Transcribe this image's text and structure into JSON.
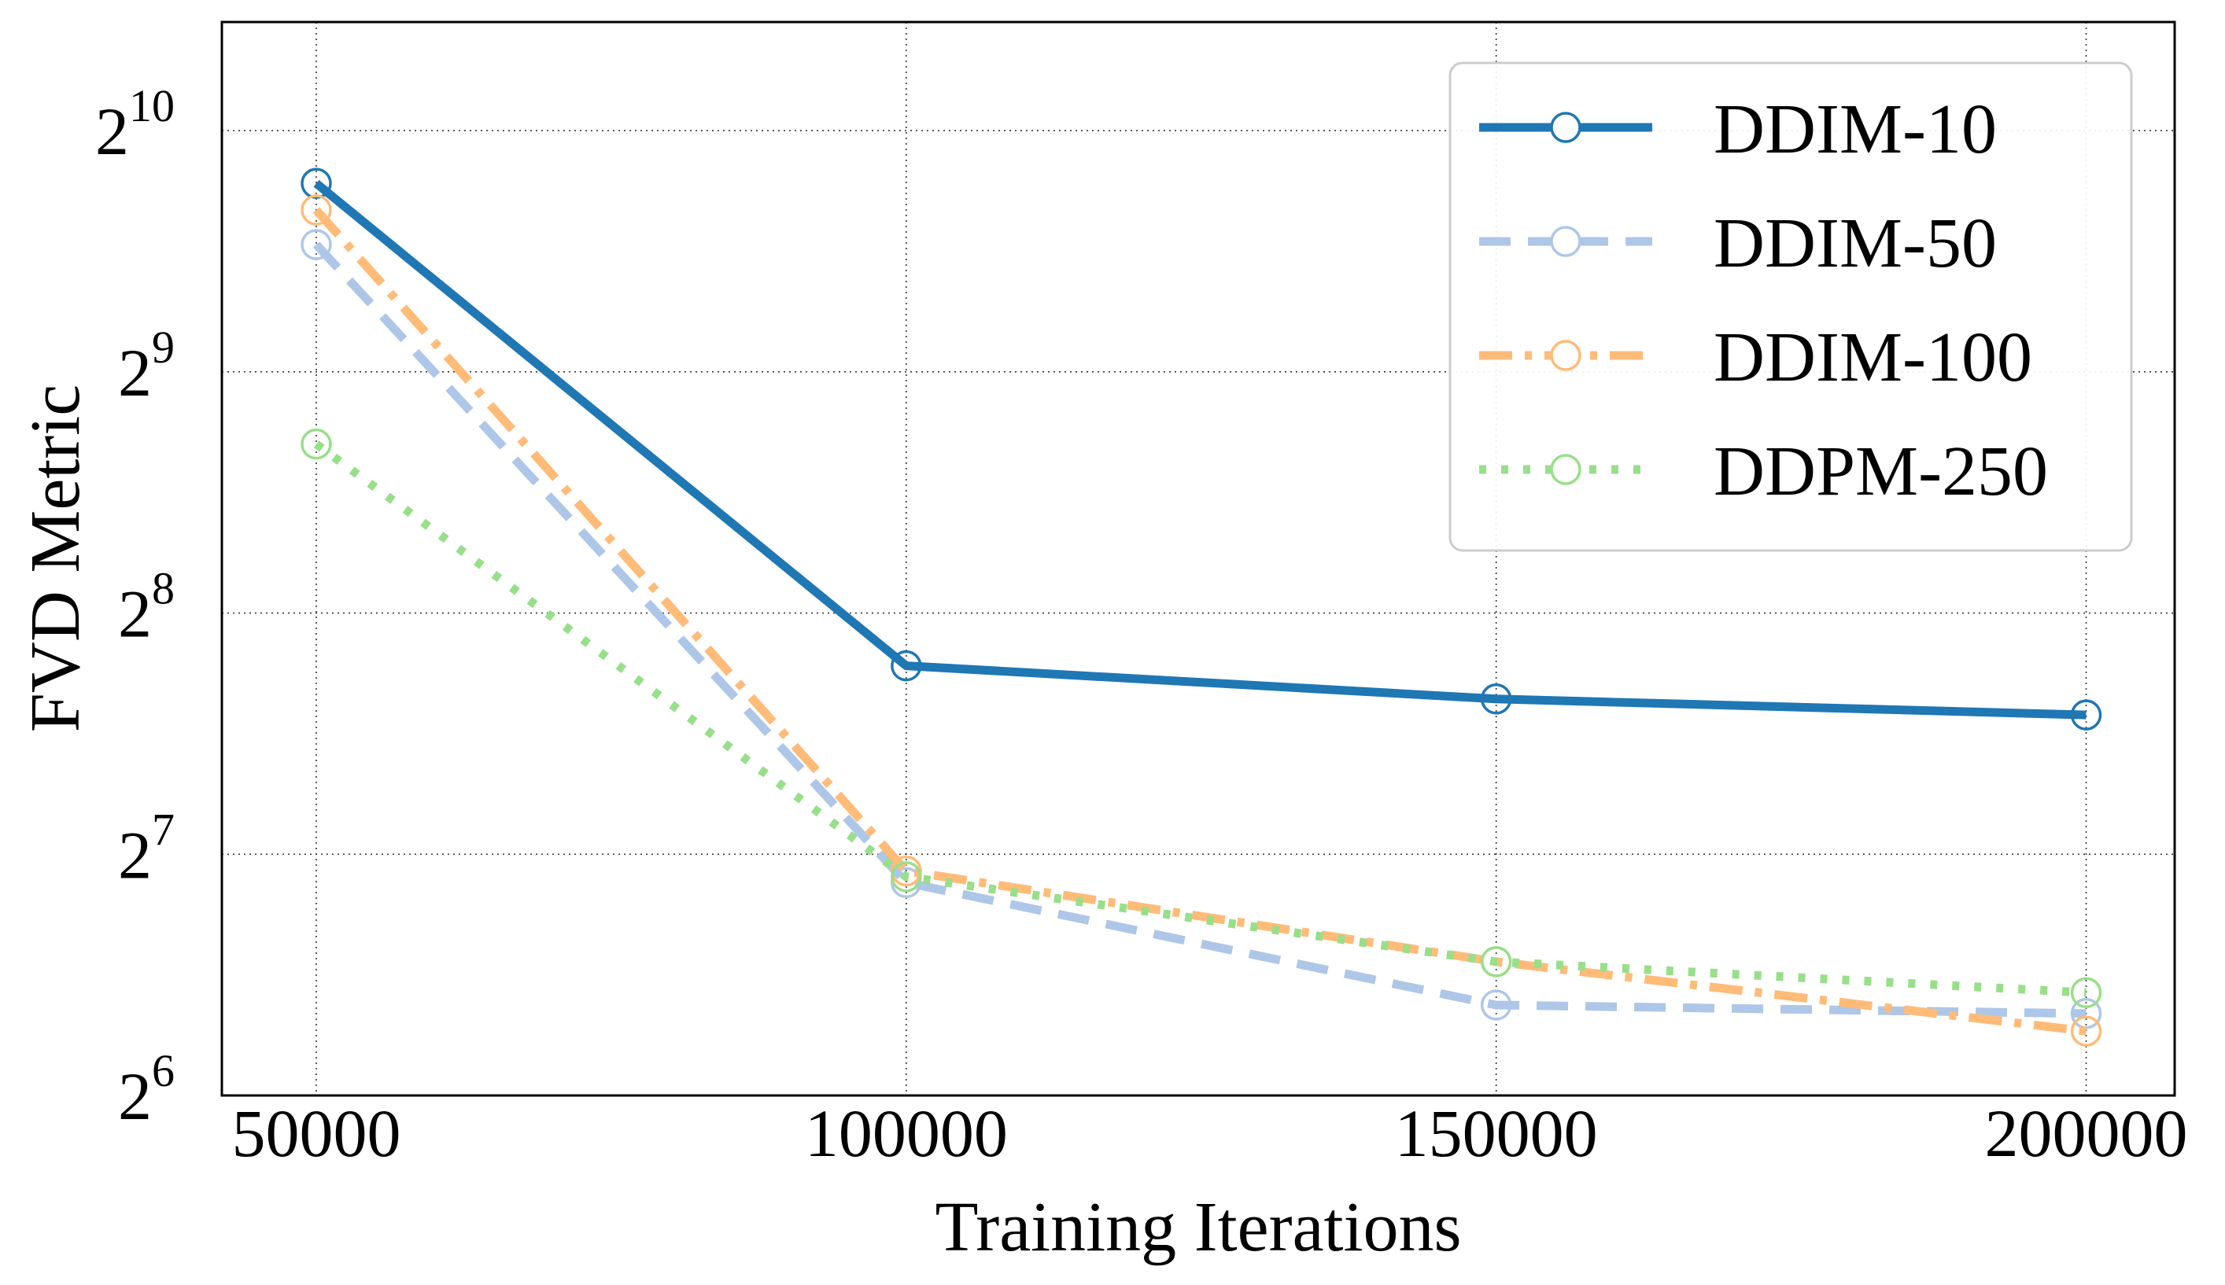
{
  "chart_data": {
    "type": "line",
    "title": "",
    "xlabel": "Training Iterations",
    "ylabel": "FVD Metric",
    "x": [
      50000,
      100000,
      150000,
      200000
    ],
    "xlim": [
      42000,
      207500
    ],
    "y_scale": "log2",
    "ylim_exponent": [
      6,
      10.45
    ],
    "yticks": [
      {
        "base": "2",
        "exp": "6",
        "value": 64
      },
      {
        "base": "2",
        "exp": "7",
        "value": 128
      },
      {
        "base": "2",
        "exp": "8",
        "value": 256
      },
      {
        "base": "2",
        "exp": "9",
        "value": 512
      },
      {
        "base": "2",
        "exp": "10",
        "value": 1024
      }
    ],
    "xticks": [
      "50000",
      "100000",
      "150000",
      "200000"
    ],
    "grid": true,
    "legend_position": "top-right",
    "series": [
      {
        "name": "DDIM-10",
        "color": "#1f77b4",
        "style": "solid",
        "values": [
          880,
          220,
          200,
          191
        ]
      },
      {
        "name": "DDIM-50",
        "color": "#aec7e8",
        "style": "dashed",
        "values": [
          738,
          118,
          83,
          81
        ]
      },
      {
        "name": "DDIM-100",
        "color": "#ffbb78",
        "style": "dashdot",
        "values": [
          815,
          122,
          94,
          77
        ]
      },
      {
        "name": "DDPM-250",
        "color": "#98df8a",
        "style": "dotted",
        "values": [
          416,
          120,
          94,
          86
        ]
      }
    ]
  }
}
